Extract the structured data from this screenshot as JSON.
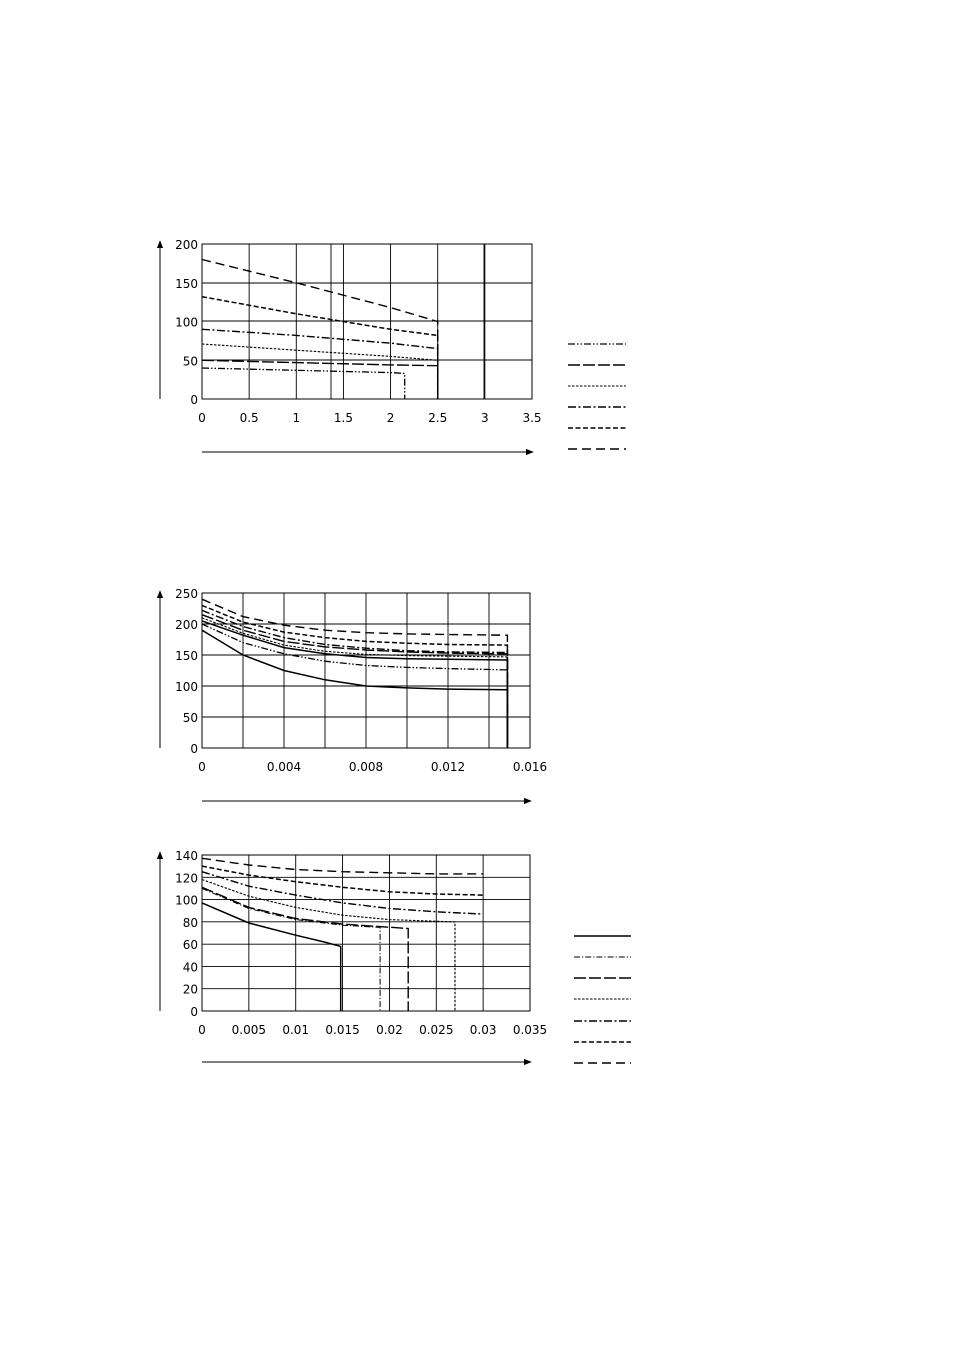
{
  "chart_data": [
    {
      "type": "line",
      "xlim": [
        0,
        3.5
      ],
      "ylim": [
        0,
        200
      ],
      "x_ticks": [
        "0",
        "0.5",
        "1",
        "1.5",
        "2",
        "2.5",
        "3",
        "3.5"
      ],
      "y_ticks": [
        "0",
        "50",
        "100",
        "150",
        "200"
      ],
      "grid": true,
      "legend_position": "right",
      "series": [
        {
          "style": "dashdotdot",
          "points": [
            [
              0,
              40
            ],
            [
              1,
              37
            ],
            [
              2,
              34
            ],
            [
              2.15,
              33
            ]
          ],
          "end_drop": true
        },
        {
          "style": "longdash",
          "points": [
            [
              0,
              50
            ],
            [
              1,
              47
            ],
            [
              2,
              44
            ],
            [
              2.5,
              43
            ]
          ],
          "end_drop": true
        },
        {
          "style": "finedash",
          "points": [
            [
              0,
              71
            ],
            [
              1,
              63
            ],
            [
              2,
              55
            ],
            [
              2.5,
              50
            ]
          ],
          "end_drop": true
        },
        {
          "style": "dashdot",
          "points": [
            [
              0,
              90
            ],
            [
              1,
              82
            ],
            [
              2,
              72
            ],
            [
              2.5,
              65
            ]
          ],
          "end_drop": true
        },
        {
          "style": "dash",
          "points": [
            [
              0,
              132
            ],
            [
              1,
              110
            ],
            [
              2,
              90
            ],
            [
              2.5,
              82
            ]
          ],
          "end_drop": true
        },
        {
          "style": "widedash",
          "points": [
            [
              0,
              180
            ],
            [
              1,
              150
            ],
            [
              2,
              118
            ],
            [
              2.5,
              100
            ]
          ],
          "end_drop": true
        }
      ]
    },
    {
      "type": "line",
      "xlim": [
        0,
        0.016
      ],
      "ylim": [
        0,
        250
      ],
      "x_ticks": [
        "0",
        "0.004",
        "0.008",
        "0.012",
        "0.016"
      ],
      "y_ticks": [
        "0",
        "50",
        "100",
        "150",
        "200",
        "250"
      ],
      "grid": true,
      "series": [
        {
          "style": "solid",
          "points": [
            [
              0,
              190
            ],
            [
              0.002,
              150
            ],
            [
              0.004,
              125
            ],
            [
              0.006,
              110
            ],
            [
              0.008,
              100
            ],
            [
              0.01,
              97
            ],
            [
              0.012,
              95
            ],
            [
              0.0149,
              94
            ]
          ],
          "end_drop": true
        },
        {
          "style": "dashdotdot",
          "points": [
            [
              0,
              200
            ],
            [
              0.002,
              170
            ],
            [
              0.004,
              152
            ],
            [
              0.006,
              140
            ],
            [
              0.008,
              133
            ],
            [
              0.01,
              130
            ],
            [
              0.012,
              128
            ],
            [
              0.0149,
              126
            ]
          ],
          "end_drop": true
        },
        {
          "style": "solid",
          "points": [
            [
              0,
              205
            ],
            [
              0.002,
              182
            ],
            [
              0.004,
              162
            ],
            [
              0.006,
              152
            ],
            [
              0.008,
              146
            ],
            [
              0.01,
              144
            ],
            [
              0.012,
              143
            ],
            [
              0.0149,
              142
            ]
          ],
          "end_drop": true
        },
        {
          "style": "finedash",
          "points": [
            [
              0,
              210
            ],
            [
              0.002,
              185
            ],
            [
              0.004,
              166
            ],
            [
              0.006,
              156
            ],
            [
              0.008,
              151
            ],
            [
              0.01,
              149
            ],
            [
              0.012,
              148
            ],
            [
              0.0149,
              147
            ]
          ],
          "end_drop": true
        },
        {
          "style": "longdash",
          "points": [
            [
              0,
              215
            ],
            [
              0.002,
              190
            ],
            [
              0.004,
              172
            ],
            [
              0.006,
              163
            ],
            [
              0.008,
              158
            ],
            [
              0.01,
              155
            ],
            [
              0.012,
              153
            ],
            [
              0.0149,
              152
            ]
          ],
          "end_drop": true
        },
        {
          "style": "dashdot",
          "points": [
            [
              0,
              222
            ],
            [
              0.002,
              196
            ],
            [
              0.004,
              178
            ],
            [
              0.006,
              167
            ],
            [
              0.008,
              161
            ],
            [
              0.01,
              157
            ],
            [
              0.012,
              155
            ],
            [
              0.0149,
              154
            ]
          ],
          "end_drop": true
        },
        {
          "style": "dash",
          "points": [
            [
              0,
              230
            ],
            [
              0.002,
              203
            ],
            [
              0.004,
              187
            ],
            [
              0.006,
              178
            ],
            [
              0.008,
              172
            ],
            [
              0.01,
              169
            ],
            [
              0.012,
              167
            ],
            [
              0.0149,
              166
            ]
          ],
          "end_drop": true
        },
        {
          "style": "widedash",
          "points": [
            [
              0,
              240
            ],
            [
              0.002,
              212
            ],
            [
              0.004,
              198
            ],
            [
              0.006,
              190
            ],
            [
              0.008,
              186
            ],
            [
              0.01,
              184
            ],
            [
              0.012,
              183
            ],
            [
              0.0149,
              182
            ]
          ],
          "end_drop": true
        }
      ]
    },
    {
      "type": "line",
      "xlim": [
        0,
        0.035
      ],
      "ylim": [
        0,
        140
      ],
      "x_ticks": [
        "0",
        "0.005",
        "0.01",
        "0.015",
        "0.02",
        "0.025",
        "0.03",
        "0.035"
      ],
      "y_ticks": [
        "0",
        "20",
        "40",
        "60",
        "80",
        "100",
        "120",
        "140"
      ],
      "grid": true,
      "legend_position": "right",
      "series": [
        {
          "style": "solid",
          "points": [
            [
              0,
              97
            ],
            [
              0.005,
              79
            ],
            [
              0.01,
              68
            ],
            [
              0.013,
              62
            ],
            [
              0.0148,
              58
            ]
          ],
          "end_drop": true
        },
        {
          "style": "dashdotfine",
          "points": [
            [
              0,
              110
            ],
            [
              0.005,
              92
            ],
            [
              0.01,
              82
            ],
            [
              0.015,
              77
            ],
            [
              0.019,
              75
            ]
          ],
          "end_drop": true
        },
        {
          "style": "longdash",
          "points": [
            [
              0,
              111
            ],
            [
              0.005,
              93
            ],
            [
              0.01,
              83
            ],
            [
              0.015,
              78
            ],
            [
              0.022,
              74
            ]
          ],
          "end_drop": true
        },
        {
          "style": "finedash",
          "points": [
            [
              0,
              118
            ],
            [
              0.005,
              103
            ],
            [
              0.01,
              93
            ],
            [
              0.015,
              86
            ],
            [
              0.02,
              82
            ],
            [
              0.027,
              80
            ]
          ],
          "end_drop": true
        },
        {
          "style": "dashdot",
          "points": [
            [
              0,
              125
            ],
            [
              0.005,
              112
            ],
            [
              0.01,
              104
            ],
            [
              0.015,
              97
            ],
            [
              0.02,
              92
            ],
            [
              0.025,
              89
            ],
            [
              0.03,
              87
            ]
          ],
          "end_drop": false
        },
        {
          "style": "dash",
          "points": [
            [
              0,
              130
            ],
            [
              0.005,
              122
            ],
            [
              0.01,
              116
            ],
            [
              0.015,
              111
            ],
            [
              0.02,
              107
            ],
            [
              0.025,
              105
            ],
            [
              0.03,
              104
            ]
          ],
          "end_drop": false
        },
        {
          "style": "widedash",
          "points": [
            [
              0,
              137
            ],
            [
              0.005,
              131
            ],
            [
              0.01,
              127
            ],
            [
              0.015,
              125
            ],
            [
              0.02,
              124
            ],
            [
              0.025,
              123
            ],
            [
              0.03,
              123
            ]
          ],
          "end_drop": false
        }
      ]
    }
  ]
}
